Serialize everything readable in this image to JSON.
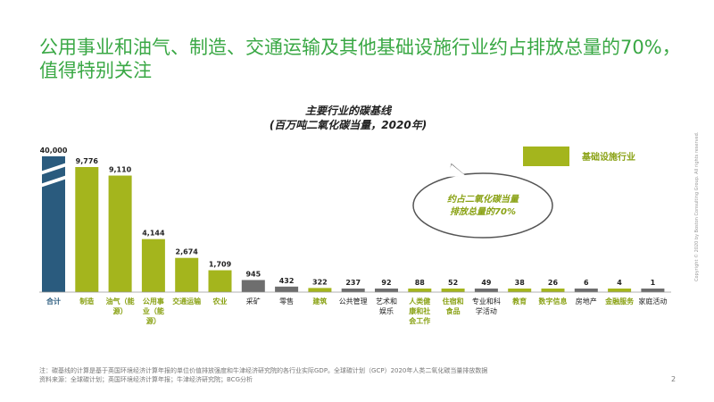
{
  "slide": {
    "title": "公用事业和油气、制造、交通运输及其他基础设施行业约占排放总量的70%，值得特别关注",
    "page_number": "2",
    "footnote_line1": "注：碳基线的计算是基于英国环境经济计算年报的单位价值排放强度和牛津经济研究院的各行业实际GDP。全球碳计划（GCP）2020年人类二氧化碳当量排放数据",
    "footnote_line2": "资料来源：全球碳计划；英国环境经济计算年报；牛津经济研究院；BCG分析",
    "copyright": "Copyright © 2020 by Boston Consulting Group. All rights reserved."
  },
  "chart_data": {
    "type": "bar",
    "title": "主要行业的碳基线",
    "subtitle": "(百万吨二氧化碳当量，2020年)",
    "categories": [
      [
        "合计"
      ],
      [
        "制造"
      ],
      [
        "油气（能",
        "源）"
      ],
      [
        "公用事",
        "业（能",
        "源）"
      ],
      [
        "交通运输"
      ],
      [
        "农业"
      ],
      [
        "采矿"
      ],
      [
        "零售"
      ],
      [
        "建筑"
      ],
      [
        "公共管理"
      ],
      [
        "艺术和",
        "娱乐"
      ],
      [
        "人类健",
        "康和社",
        "会工作"
      ],
      [
        "住宿和",
        "食品"
      ],
      [
        "专业和科",
        "学活动"
      ],
      [
        "教育"
      ],
      [
        "数字信息"
      ],
      [
        "房地产"
      ],
      [
        "金融服务"
      ],
      [
        "家庭活动"
      ]
    ],
    "values": [
      40000,
      9776,
      9110,
      4144,
      2674,
      1709,
      945,
      432,
      322,
      237,
      92,
      88,
      52,
      49,
      38,
      26,
      6,
      4,
      1
    ],
    "value_labels": [
      "40,000",
      "9,776",
      "9,110",
      "4,144",
      "2,674",
      "1,709",
      "945",
      "432",
      "322",
      "237",
      "92",
      "88",
      "52",
      "49",
      "38",
      "26",
      "6",
      "4",
      "1"
    ],
    "groups": [
      "total",
      "infra",
      "infra",
      "infra",
      "infra",
      "infra",
      "other",
      "other",
      "infra",
      "other",
      "other",
      "infra",
      "infra",
      "other",
      "infra",
      "infra",
      "other",
      "infra",
      "other"
    ],
    "colors": {
      "total": "#2a5b7e",
      "infra": "#a4b51d",
      "other": "#6e6e6e",
      "label_infra": "#8aa215",
      "label_default": "#222222"
    },
    "legend": {
      "label": "基础设施行业",
      "color": "#a4b51d"
    },
    "callout": [
      "约占二氧化碳当量",
      "排放总量的70%"
    ]
  }
}
